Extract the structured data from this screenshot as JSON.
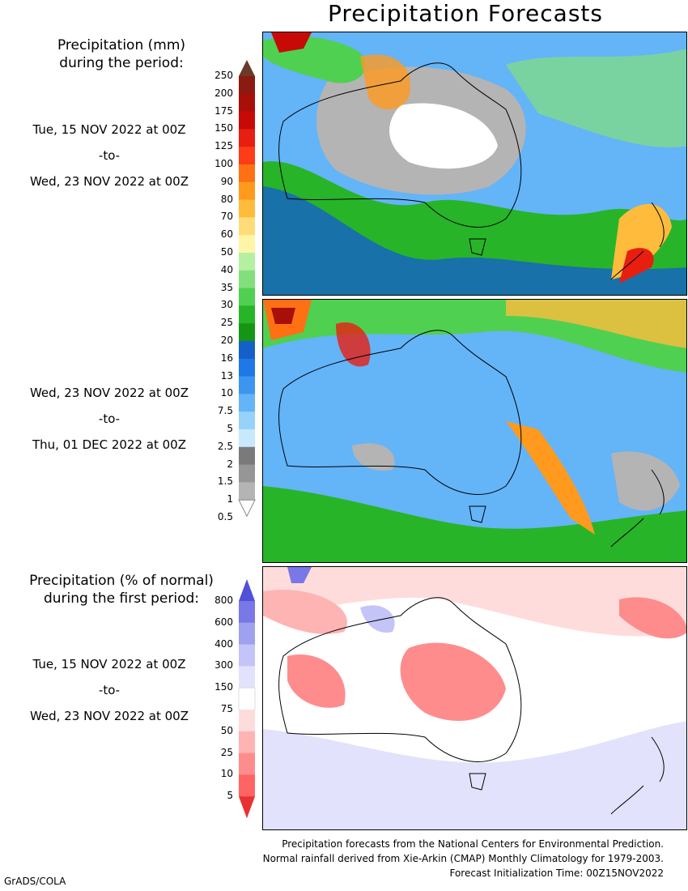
{
  "title": "Precipitation Forecasts",
  "precip_legend": {
    "title_line1": "Precipitation (mm)",
    "title_line2": "during the period:",
    "ticks": [
      "250",
      "200",
      "175",
      "150",
      "125",
      "100",
      "90",
      "80",
      "70",
      "60",
      "50",
      "40",
      "35",
      "30",
      "25",
      "20",
      "16",
      "13",
      "10",
      "7.5",
      "5",
      "2.5",
      "2",
      "1.5",
      "1",
      "0.5"
    ],
    "colors": [
      "#6b3a28",
      "#8b1a10",
      "#a80f08",
      "#c80a06",
      "#e81e10",
      "#ff3c18",
      "#ff7014",
      "#ff9a1e",
      "#ffbc3c",
      "#ffdc78",
      "#fff5a8",
      "#b4f0a0",
      "#82e07c",
      "#50d050",
      "#28b428",
      "#149614",
      "#1460c8",
      "#1e78e6",
      "#3c96f0",
      "#64b4f8",
      "#96d2fa",
      "#c8e8fc",
      "#7a7a7a",
      "#969696",
      "#b4b4b4",
      "#d2d2d2"
    ]
  },
  "period1": {
    "start": "Tue, 15 NOV 2022 at 00Z",
    "to": "-to-",
    "end": "Wed, 23 NOV 2022 at 00Z"
  },
  "period2": {
    "start": "Wed, 23 NOV 2022 at 00Z",
    "to": "-to-",
    "end": "Thu, 01 DEC 2022 at 00Z"
  },
  "pct_legend": {
    "title_line1": "Precipitation (% of normal)",
    "title_line2": "during the first period:",
    "ticks": [
      "800",
      "600",
      "400",
      "300",
      "150",
      "75",
      "50",
      "25",
      "10",
      "5"
    ],
    "colors": [
      "#5050d8",
      "#7878e6",
      "#a0a0f0",
      "#c4c4f8",
      "#e2e2fc",
      "#ffffff",
      "#ffdcdc",
      "#ffb4b4",
      "#ff8c8c",
      "#ff6464",
      "#e83232"
    ]
  },
  "period3": {
    "start": "Tue, 15 NOV 2022 at 00Z",
    "to": "-to-",
    "end": "Wed, 23 NOV 2022 at 00Z"
  },
  "footer": {
    "line1": "Precipitation forecasts from the National Centers for Environmental Prediction.",
    "line2": "Normal rainfall derived from Xie-Arkin (CMAP) Monthly Climatology for 1979-2003.",
    "line3": "Forecast Initialization Time: 00Z15NOV2022"
  },
  "credit": "GrADS/COLA"
}
